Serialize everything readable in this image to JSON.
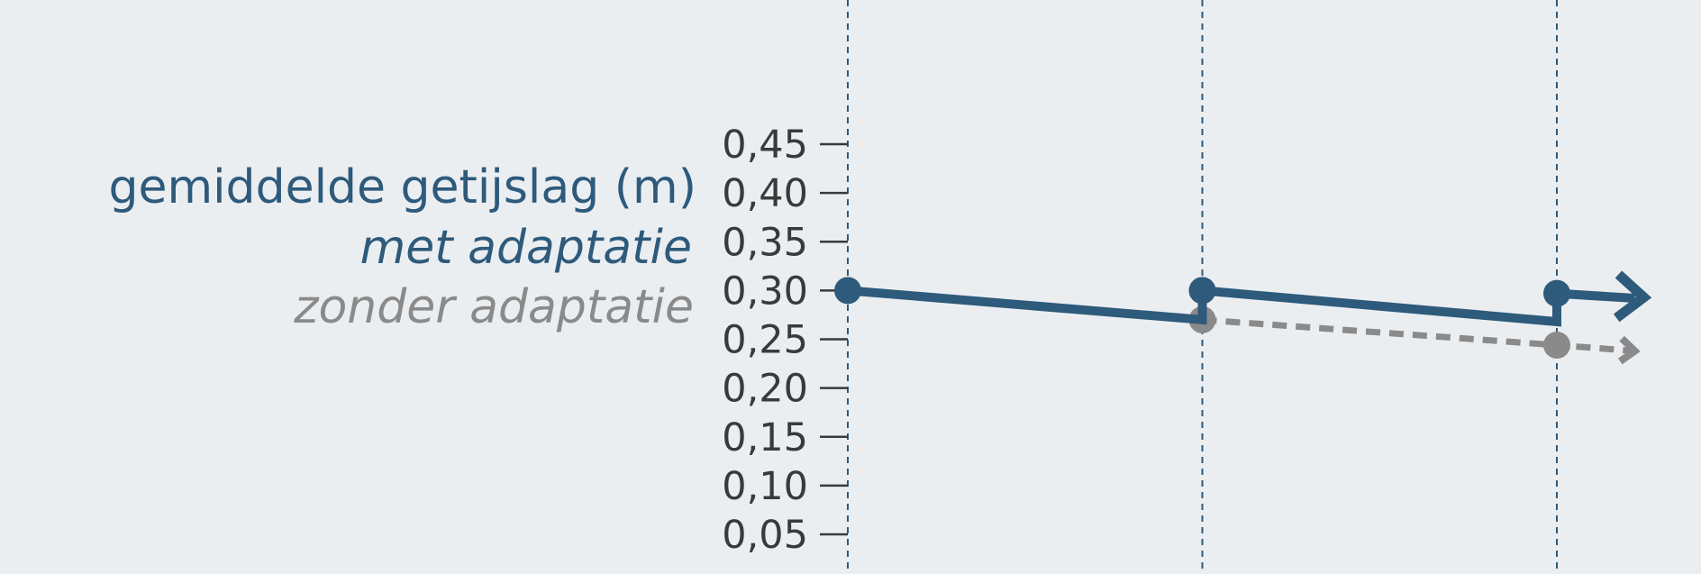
{
  "chart_data": {
    "type": "line",
    "ylabel": "gemiddelde getijslag (m)",
    "yticks": [
      "0,05",
      "0,10",
      "0,15",
      "0,20",
      "0,25",
      "0,30",
      "0,35",
      "0,40",
      "0,45"
    ],
    "ytick_values": [
      0.05,
      0.1,
      0.15,
      0.2,
      0.25,
      0.3,
      0.35,
      0.4,
      0.45
    ],
    "ylim": [
      0.0,
      0.49
    ],
    "x_markers": 3,
    "series": [
      {
        "name": "met adaptatie",
        "color": "#2e5a7b",
        "style": "solid",
        "points": [
          [
            0,
            0.3
          ],
          [
            1,
            0.27
          ],
          [
            1,
            0.3
          ],
          [
            2,
            0.268
          ],
          [
            2,
            0.297
          ],
          [
            2.22,
            0.292
          ]
        ]
      },
      {
        "name": "zonder adaptatie",
        "color": "#8a8a8a",
        "style": "dashed",
        "points": [
          [
            1,
            0.27
          ],
          [
            2,
            0.244
          ],
          [
            2.22,
            0.238
          ]
        ]
      }
    ],
    "legend": [
      "gemiddelde getijslag (m)",
      "met adaptatie",
      "zonder adaptatie"
    ]
  }
}
